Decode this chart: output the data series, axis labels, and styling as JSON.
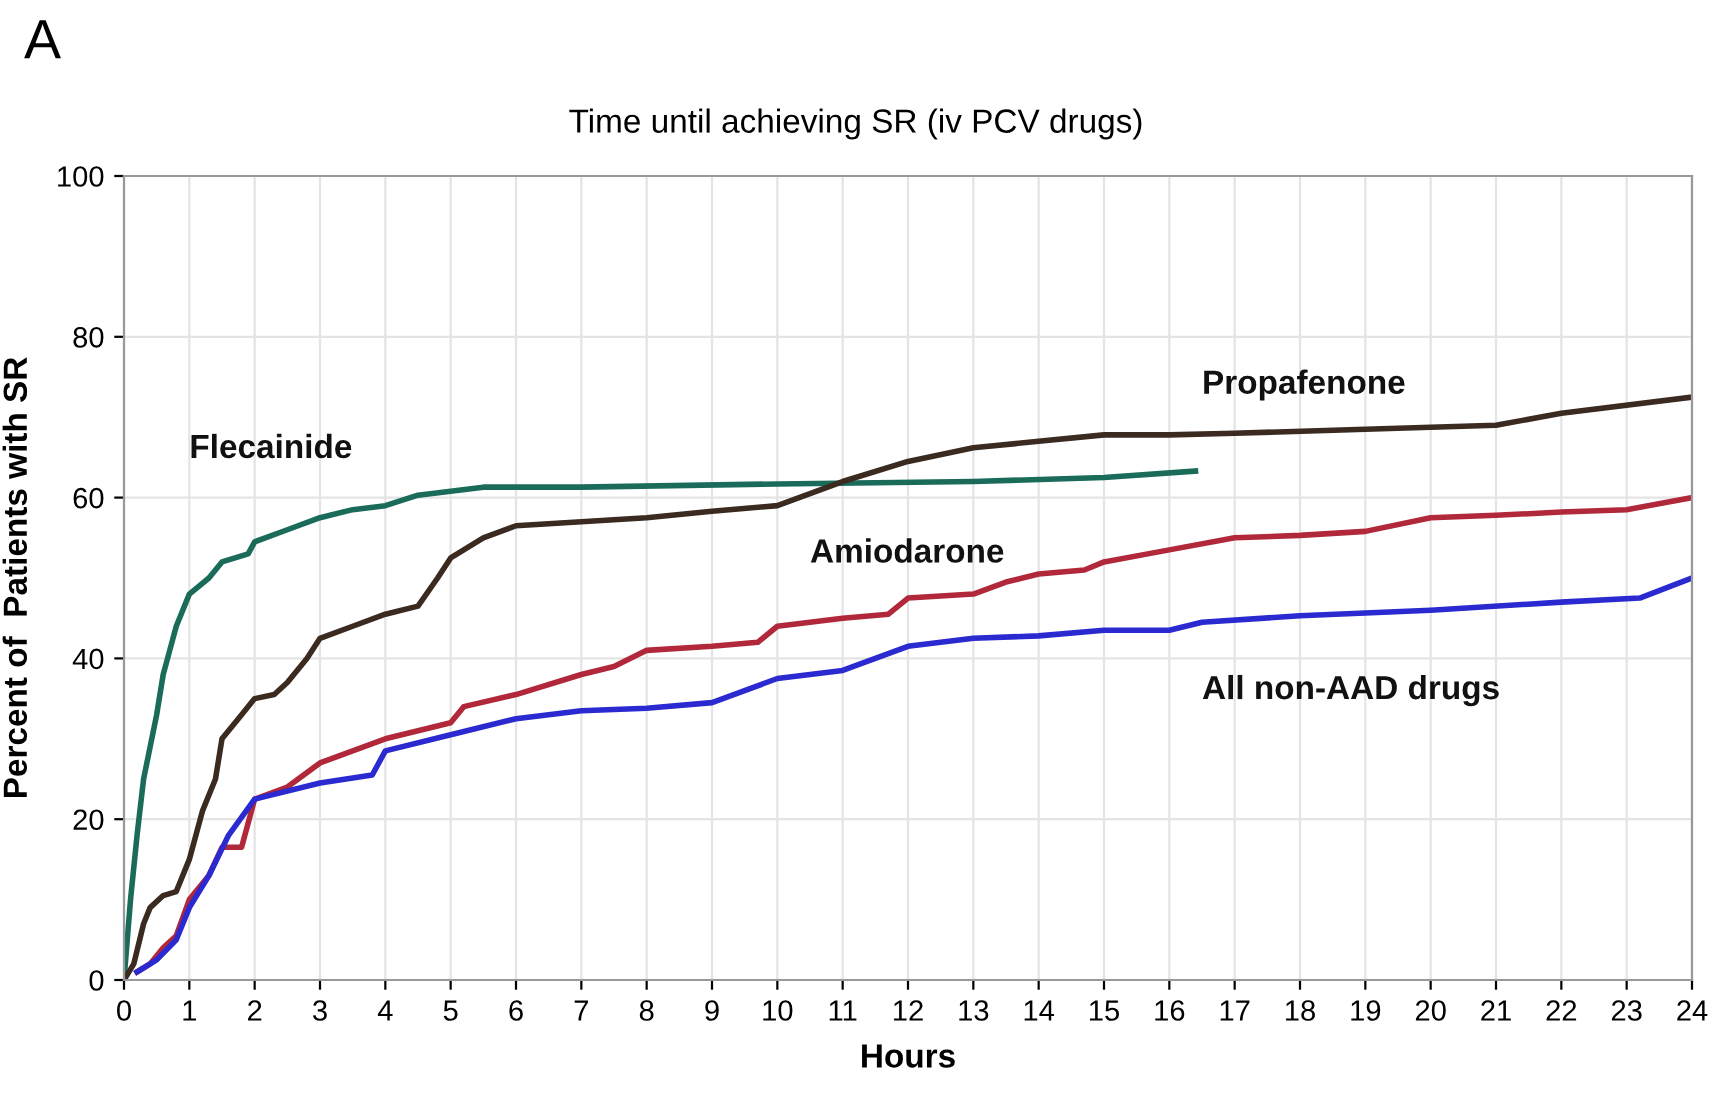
{
  "chart_data": {
    "type": "line",
    "title": "Time until achieving SR (iv PCV drugs)",
    "xlabel": "Hours",
    "ylabel": "Percent of  Patients with SR",
    "annotations": [
      "A"
    ],
    "xlim": [
      0,
      24
    ],
    "xticks": [
      0,
      1,
      2,
      3,
      4,
      5,
      6,
      7,
      8,
      9,
      10,
      11,
      12,
      13,
      14,
      15,
      16,
      17,
      18,
      19,
      20,
      21,
      22,
      23,
      24
    ],
    "ylim": [
      0,
      100
    ],
    "yticks": [
      0,
      20,
      40,
      60,
      80,
      100
    ],
    "grid": true,
    "legend": false,
    "marker": "none",
    "line_style": "solid",
    "series": [
      {
        "name": "Flecainide",
        "color": "#1a6b5a",
        "x": [
          0,
          0.1,
          0.2,
          0.3,
          0.5,
          0.6,
          0.7,
          0.8,
          1,
          1.3,
          1.5,
          1.9,
          2,
          2.5,
          3,
          3.5,
          4,
          4.5,
          5,
          5.5,
          7,
          10,
          13,
          15,
          16.4
        ],
        "values": [
          0,
          10,
          18,
          25,
          33,
          38,
          41,
          44,
          48,
          50,
          52,
          53,
          54.5,
          56,
          57.5,
          58.5,
          59,
          60.3,
          60.8,
          61.3,
          61.3,
          61.7,
          62,
          62.5,
          63.3
        ]
      },
      {
        "name": "Propafenone",
        "color": "#3a2a20",
        "x": [
          0,
          0.15,
          0.3,
          0.4,
          0.6,
          0.8,
          1,
          1.2,
          1.4,
          1.5,
          1.8,
          2,
          2.3,
          2.5,
          2.8,
          3,
          3.5,
          4,
          4.5,
          4.8,
          5,
          5.5,
          6,
          7,
          8,
          9,
          10,
          10.5,
          11,
          12,
          13,
          14,
          15,
          16,
          17,
          19,
          21,
          22,
          24
        ],
        "values": [
          0,
          2,
          7,
          9,
          10.5,
          11,
          15,
          21,
          25,
          30,
          33,
          35,
          35.5,
          37,
          40,
          42.5,
          44,
          45.5,
          46.5,
          50,
          52.5,
          55,
          56.5,
          57,
          57.5,
          58.3,
          59,
          60.5,
          62,
          64.5,
          66.2,
          67,
          67.8,
          67.8,
          68,
          68.5,
          69,
          70.5,
          72.5
        ]
      },
      {
        "name": "Amiodarone",
        "color": "#b0283a",
        "x": [
          0.2,
          0.4,
          0.6,
          0.8,
          1,
          1.3,
          1.5,
          1.8,
          2,
          2.5,
          3,
          3.5,
          4,
          4.5,
          5,
          5.2,
          6,
          7,
          7.5,
          8,
          9,
          9.7,
          10,
          11,
          11.7,
          12,
          13,
          13.5,
          14,
          14.7,
          15,
          16,
          17,
          18,
          19,
          20,
          21,
          22,
          23,
          24
        ],
        "values": [
          1,
          2,
          4,
          5.5,
          10,
          13,
          16.5,
          16.5,
          22.5,
          24,
          27,
          28.5,
          30,
          31,
          32,
          34,
          35.5,
          38,
          39,
          41,
          41.5,
          42,
          44,
          45,
          45.5,
          47.5,
          48,
          49.5,
          50.5,
          51,
          52,
          53.5,
          55,
          55.3,
          55.8,
          57.5,
          57.8,
          58.2,
          58.5,
          60
        ]
      },
      {
        "name": "All non-AAD drugs",
        "color": "#2a2ad0",
        "x": [
          0.2,
          0.5,
          0.8,
          1,
          1.3,
          1.6,
          2,
          3,
          3.8,
          4,
          5,
          6,
          7,
          8,
          9,
          10,
          11,
          12,
          13,
          14,
          15,
          16,
          16.5,
          18,
          20,
          22,
          23.2,
          24
        ],
        "values": [
          1,
          2.5,
          5,
          9,
          13,
          18,
          22.5,
          24.5,
          25.5,
          28.5,
          30.5,
          32.5,
          33.5,
          33.8,
          34.5,
          37.5,
          38.5,
          41.5,
          42.5,
          42.8,
          43.5,
          43.5,
          44.5,
          45.3,
          46,
          47,
          47.5,
          50
        ]
      }
    ]
  }
}
